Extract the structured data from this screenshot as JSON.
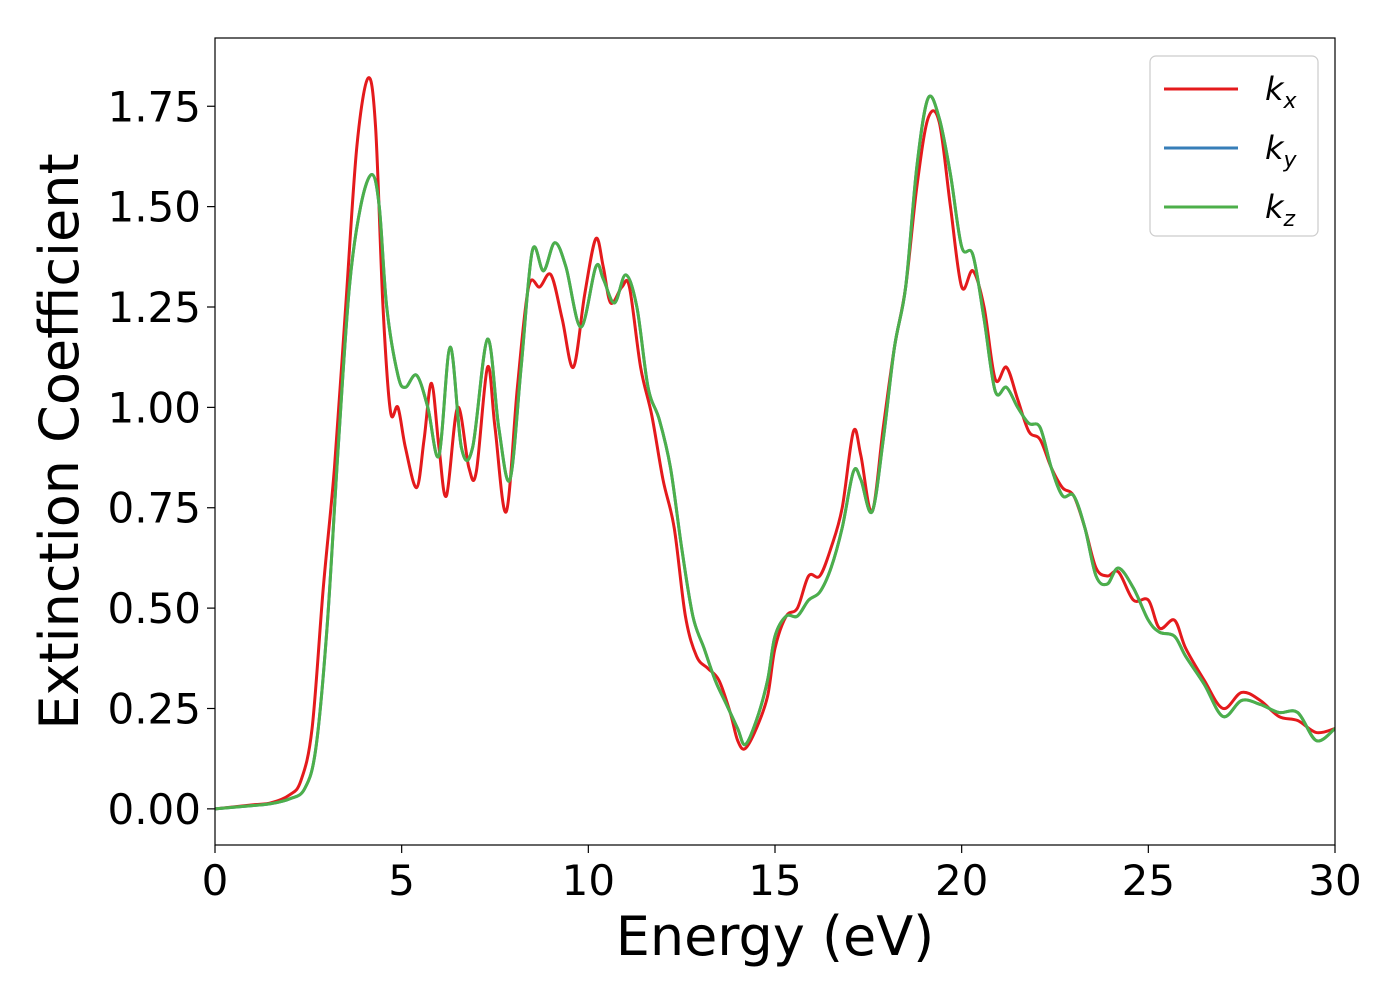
{
  "chart_data": {
    "type": "line",
    "title": "",
    "xlabel": "Energy (eV)",
    "ylabel": "Extinction Coefficient",
    "xlim": [
      0,
      30
    ],
    "ylim": [
      -0.09,
      1.92
    ],
    "xticks": [
      0,
      5,
      10,
      15,
      20,
      25,
      30
    ],
    "xtick_labels": [
      "0",
      "5",
      "10",
      "15",
      "20",
      "25",
      "30"
    ],
    "yticks": [
      0.0,
      0.25,
      0.5,
      0.75,
      1.0,
      1.25,
      1.5,
      1.75
    ],
    "ytick_labels": [
      "0.00",
      "0.25",
      "0.50",
      "0.75",
      "1.00",
      "1.25",
      "1.50",
      "1.75"
    ],
    "grid": false,
    "legend_position": "top-right",
    "series": [
      {
        "name": "k",
        "subscript": "x",
        "color": "#e41a1c",
        "points": [
          [
            0,
            0
          ],
          [
            1,
            0.01
          ],
          [
            1.5,
            0.015
          ],
          [
            2,
            0.035
          ],
          [
            2.3,
            0.07
          ],
          [
            2.6,
            0.2
          ],
          [
            2.9,
            0.55
          ],
          [
            3.2,
            0.85
          ],
          [
            3.5,
            1.25
          ],
          [
            3.8,
            1.65
          ],
          [
            4.1,
            1.82
          ],
          [
            4.3,
            1.7
          ],
          [
            4.5,
            1.25
          ],
          [
            4.7,
            0.99
          ],
          [
            4.9,
            1.0
          ],
          [
            5.1,
            0.9
          ],
          [
            5.4,
            0.8
          ],
          [
            5.6,
            0.92
          ],
          [
            5.8,
            1.06
          ],
          [
            6.0,
            0.9
          ],
          [
            6.2,
            0.78
          ],
          [
            6.5,
            1.0
          ],
          [
            6.8,
            0.85
          ],
          [
            7.0,
            0.84
          ],
          [
            7.3,
            1.1
          ],
          [
            7.5,
            0.95
          ],
          [
            7.8,
            0.74
          ],
          [
            8.1,
            1.05
          ],
          [
            8.4,
            1.3
          ],
          [
            8.7,
            1.3
          ],
          [
            9.0,
            1.33
          ],
          [
            9.3,
            1.22
          ],
          [
            9.6,
            1.1
          ],
          [
            9.9,
            1.28
          ],
          [
            10.2,
            1.42
          ],
          [
            10.4,
            1.35
          ],
          [
            10.6,
            1.26
          ],
          [
            10.9,
            1.3
          ],
          [
            11.1,
            1.3
          ],
          [
            11.4,
            1.1
          ],
          [
            11.7,
            0.98
          ],
          [
            12.0,
            0.82
          ],
          [
            12.3,
            0.7
          ],
          [
            12.6,
            0.48
          ],
          [
            12.9,
            0.38
          ],
          [
            13.2,
            0.35
          ],
          [
            13.5,
            0.32
          ],
          [
            13.8,
            0.24
          ],
          [
            14.0,
            0.17
          ],
          [
            14.2,
            0.15
          ],
          [
            14.5,
            0.2
          ],
          [
            14.8,
            0.28
          ],
          [
            15.0,
            0.4
          ],
          [
            15.3,
            0.48
          ],
          [
            15.6,
            0.5
          ],
          [
            15.9,
            0.58
          ],
          [
            16.2,
            0.58
          ],
          [
            16.5,
            0.65
          ],
          [
            16.8,
            0.75
          ],
          [
            17.1,
            0.94
          ],
          [
            17.3,
            0.88
          ],
          [
            17.6,
            0.74
          ],
          [
            17.9,
            0.95
          ],
          [
            18.2,
            1.15
          ],
          [
            18.5,
            1.3
          ],
          [
            18.8,
            1.55
          ],
          [
            19.1,
            1.72
          ],
          [
            19.4,
            1.71
          ],
          [
            19.7,
            1.5
          ],
          [
            20.0,
            1.3
          ],
          [
            20.3,
            1.34
          ],
          [
            20.6,
            1.25
          ],
          [
            20.9,
            1.07
          ],
          [
            21.2,
            1.1
          ],
          [
            21.5,
            1.02
          ],
          [
            21.8,
            0.94
          ],
          [
            22.1,
            0.92
          ],
          [
            22.4,
            0.85
          ],
          [
            22.7,
            0.8
          ],
          [
            23.0,
            0.78
          ],
          [
            23.3,
            0.7
          ],
          [
            23.6,
            0.6
          ],
          [
            23.9,
            0.58
          ],
          [
            24.2,
            0.59
          ],
          [
            24.6,
            0.52
          ],
          [
            25.0,
            0.52
          ],
          [
            25.3,
            0.45
          ],
          [
            25.7,
            0.47
          ],
          [
            26.0,
            0.4
          ],
          [
            26.5,
            0.32
          ],
          [
            27.0,
            0.25
          ],
          [
            27.5,
            0.29
          ],
          [
            28.0,
            0.27
          ],
          [
            28.5,
            0.23
          ],
          [
            29.0,
            0.22
          ],
          [
            29.5,
            0.19
          ],
          [
            30.0,
            0.2
          ]
        ]
      },
      {
        "name": "k",
        "subscript": "y",
        "color": "#377eb8",
        "points": [
          [
            0,
            0
          ],
          [
            1,
            0.008
          ],
          [
            1.5,
            0.013
          ],
          [
            2,
            0.025
          ],
          [
            2.4,
            0.05
          ],
          [
            2.7,
            0.15
          ],
          [
            3.0,
            0.45
          ],
          [
            3.3,
            0.9
          ],
          [
            3.6,
            1.3
          ],
          [
            3.9,
            1.5
          ],
          [
            4.2,
            1.58
          ],
          [
            4.4,
            1.5
          ],
          [
            4.6,
            1.25
          ],
          [
            4.9,
            1.08
          ],
          [
            5.1,
            1.05
          ],
          [
            5.4,
            1.08
          ],
          [
            5.7,
            1.0
          ],
          [
            6.0,
            0.88
          ],
          [
            6.3,
            1.15
          ],
          [
            6.6,
            0.9
          ],
          [
            6.9,
            0.9
          ],
          [
            7.3,
            1.17
          ],
          [
            7.6,
            0.95
          ],
          [
            7.9,
            0.82
          ],
          [
            8.2,
            1.1
          ],
          [
            8.5,
            1.39
          ],
          [
            8.8,
            1.34
          ],
          [
            9.1,
            1.41
          ],
          [
            9.4,
            1.35
          ],
          [
            9.8,
            1.2
          ],
          [
            10.2,
            1.35
          ],
          [
            10.4,
            1.32
          ],
          [
            10.7,
            1.26
          ],
          [
            11.0,
            1.33
          ],
          [
            11.3,
            1.25
          ],
          [
            11.6,
            1.05
          ],
          [
            11.9,
            0.97
          ],
          [
            12.2,
            0.85
          ],
          [
            12.5,
            0.65
          ],
          [
            12.8,
            0.48
          ],
          [
            13.1,
            0.4
          ],
          [
            13.4,
            0.32
          ],
          [
            13.7,
            0.26
          ],
          [
            14.0,
            0.2
          ],
          [
            14.2,
            0.16
          ],
          [
            14.5,
            0.22
          ],
          [
            14.8,
            0.32
          ],
          [
            15.0,
            0.43
          ],
          [
            15.3,
            0.48
          ],
          [
            15.6,
            0.48
          ],
          [
            15.9,
            0.52
          ],
          [
            16.2,
            0.54
          ],
          [
            16.5,
            0.6
          ],
          [
            16.8,
            0.7
          ],
          [
            17.1,
            0.84
          ],
          [
            17.3,
            0.82
          ],
          [
            17.6,
            0.74
          ],
          [
            17.9,
            0.92
          ],
          [
            18.2,
            1.15
          ],
          [
            18.5,
            1.3
          ],
          [
            18.8,
            1.6
          ],
          [
            19.1,
            1.77
          ],
          [
            19.4,
            1.72
          ],
          [
            19.7,
            1.58
          ],
          [
            20.0,
            1.4
          ],
          [
            20.3,
            1.38
          ],
          [
            20.6,
            1.22
          ],
          [
            20.9,
            1.04
          ],
          [
            21.2,
            1.05
          ],
          [
            21.5,
            1.0
          ],
          [
            21.8,
            0.96
          ],
          [
            22.1,
            0.95
          ],
          [
            22.4,
            0.85
          ],
          [
            22.7,
            0.78
          ],
          [
            23.0,
            0.78
          ],
          [
            23.3,
            0.7
          ],
          [
            23.6,
            0.58
          ],
          [
            23.9,
            0.56
          ],
          [
            24.2,
            0.6
          ],
          [
            24.6,
            0.55
          ],
          [
            25.0,
            0.47
          ],
          [
            25.3,
            0.44
          ],
          [
            25.7,
            0.43
          ],
          [
            26.0,
            0.38
          ],
          [
            26.5,
            0.31
          ],
          [
            27.0,
            0.23
          ],
          [
            27.5,
            0.27
          ],
          [
            28.0,
            0.26
          ],
          [
            28.5,
            0.24
          ],
          [
            29.0,
            0.24
          ],
          [
            29.5,
            0.17
          ],
          [
            30.0,
            0.2
          ]
        ]
      },
      {
        "name": "k",
        "subscript": "z",
        "color": "#4daf4a",
        "points": [
          [
            0,
            0
          ],
          [
            1,
            0.008
          ],
          [
            1.5,
            0.013
          ],
          [
            2,
            0.025
          ],
          [
            2.4,
            0.05
          ],
          [
            2.7,
            0.15
          ],
          [
            3.0,
            0.45
          ],
          [
            3.3,
            0.9
          ],
          [
            3.6,
            1.3
          ],
          [
            3.9,
            1.5
          ],
          [
            4.2,
            1.58
          ],
          [
            4.4,
            1.5
          ],
          [
            4.6,
            1.25
          ],
          [
            4.9,
            1.08
          ],
          [
            5.1,
            1.05
          ],
          [
            5.4,
            1.08
          ],
          [
            5.7,
            1.0
          ],
          [
            6.0,
            0.88
          ],
          [
            6.3,
            1.15
          ],
          [
            6.6,
            0.9
          ],
          [
            6.9,
            0.9
          ],
          [
            7.3,
            1.17
          ],
          [
            7.6,
            0.95
          ],
          [
            7.9,
            0.82
          ],
          [
            8.2,
            1.1
          ],
          [
            8.5,
            1.39
          ],
          [
            8.8,
            1.34
          ],
          [
            9.1,
            1.41
          ],
          [
            9.4,
            1.35
          ],
          [
            9.8,
            1.2
          ],
          [
            10.2,
            1.35
          ],
          [
            10.4,
            1.32
          ],
          [
            10.7,
            1.26
          ],
          [
            11.0,
            1.33
          ],
          [
            11.3,
            1.25
          ],
          [
            11.6,
            1.05
          ],
          [
            11.9,
            0.97
          ],
          [
            12.2,
            0.85
          ],
          [
            12.5,
            0.65
          ],
          [
            12.8,
            0.48
          ],
          [
            13.1,
            0.4
          ],
          [
            13.4,
            0.32
          ],
          [
            13.7,
            0.26
          ],
          [
            14.0,
            0.2
          ],
          [
            14.2,
            0.16
          ],
          [
            14.5,
            0.22
          ],
          [
            14.8,
            0.32
          ],
          [
            15.0,
            0.43
          ],
          [
            15.3,
            0.48
          ],
          [
            15.6,
            0.48
          ],
          [
            15.9,
            0.52
          ],
          [
            16.2,
            0.54
          ],
          [
            16.5,
            0.6
          ],
          [
            16.8,
            0.7
          ],
          [
            17.1,
            0.84
          ],
          [
            17.3,
            0.82
          ],
          [
            17.6,
            0.74
          ],
          [
            17.9,
            0.92
          ],
          [
            18.2,
            1.15
          ],
          [
            18.5,
            1.3
          ],
          [
            18.8,
            1.6
          ],
          [
            19.1,
            1.77
          ],
          [
            19.4,
            1.72
          ],
          [
            19.7,
            1.58
          ],
          [
            20.0,
            1.4
          ],
          [
            20.3,
            1.38
          ],
          [
            20.6,
            1.22
          ],
          [
            20.9,
            1.04
          ],
          [
            21.2,
            1.05
          ],
          [
            21.5,
            1.0
          ],
          [
            21.8,
            0.96
          ],
          [
            22.1,
            0.95
          ],
          [
            22.4,
            0.85
          ],
          [
            22.7,
            0.78
          ],
          [
            23.0,
            0.78
          ],
          [
            23.3,
            0.7
          ],
          [
            23.6,
            0.58
          ],
          [
            23.9,
            0.56
          ],
          [
            24.2,
            0.6
          ],
          [
            24.6,
            0.55
          ],
          [
            25.0,
            0.47
          ],
          [
            25.3,
            0.44
          ],
          [
            25.7,
            0.43
          ],
          [
            26.0,
            0.38
          ],
          [
            26.5,
            0.31
          ],
          [
            27.0,
            0.23
          ],
          [
            27.5,
            0.27
          ],
          [
            28.0,
            0.26
          ],
          [
            28.5,
            0.24
          ],
          [
            29.0,
            0.24
          ],
          [
            29.5,
            0.17
          ],
          [
            30.0,
            0.2
          ]
        ]
      }
    ]
  }
}
